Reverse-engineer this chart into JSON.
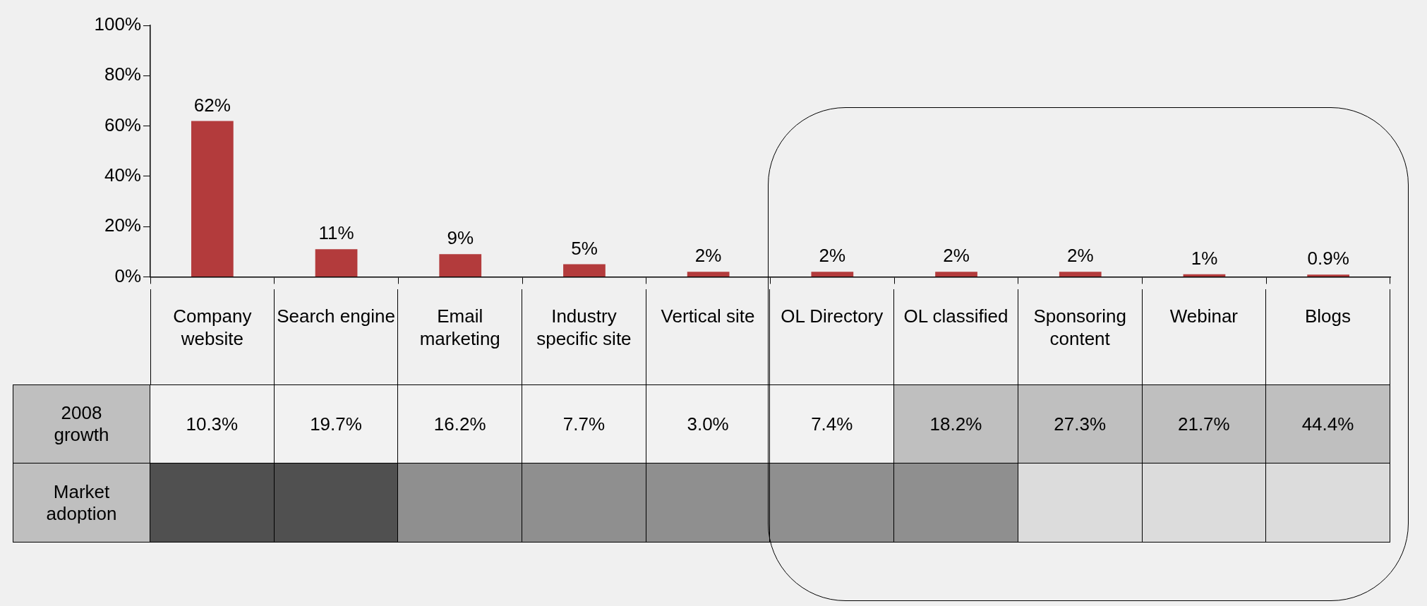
{
  "chart_data": [
    {
      "type": "bar",
      "categories": [
        "Company website",
        "Search engine",
        "Email marketing",
        "Industry specific site",
        "Vertical site",
        "OL Directory",
        "OL classified",
        "Sponsoring content",
        "Webinar",
        "Blogs"
      ],
      "values": [
        62,
        11,
        9,
        5,
        2,
        2,
        2,
        2,
        1,
        0.9
      ],
      "value_labels": [
        "62%",
        "11%",
        "9%",
        "5%",
        "2%",
        "2%",
        "2%",
        "2%",
        "1%",
        "0.9%"
      ],
      "color": "#b33b3c",
      "ylim": [
        0,
        100
      ],
      "yticks": [
        {
          "value": 0,
          "label": "0%"
        },
        {
          "value": 20,
          "label": "20%"
        },
        {
          "value": 40,
          "label": "40%"
        },
        {
          "value": 60,
          "label": "60%"
        },
        {
          "value": 80,
          "label": "80%"
        },
        {
          "value": 100,
          "label": "100%"
        }
      ],
      "legend": false,
      "grid": false
    },
    {
      "type": "heatmap",
      "categories": [
        null,
        null,
        null,
        null,
        null,
        null,
        null,
        null,
        null,
        null
      ],
      "y_categories": [
        "2008 growth",
        "Market adoption"
      ],
      "cells": [
        [
          10.3,
          19.7,
          16.2,
          7.7,
          3.0,
          7.4,
          18.2,
          27.3,
          21.7,
          44.4
        ],
        [
          null,
          null,
          null,
          null,
          null,
          null,
          null,
          null,
          null,
          null
        ]
      ],
      "cell_labels": [
        [
          "10.3%",
          "19.7%",
          "16.2%",
          "7.7%",
          "3.0%",
          "7.4%",
          "18.2%",
          "27.3%",
          "21.7%",
          "44.4%"
        ],
        [
          null,
          null,
          null,
          null,
          null,
          null,
          null,
          null,
          null,
          null
        ]
      ],
      "colors": [
        [
          "#f2f2f2",
          "#f2f2f2",
          "#f2f2f2",
          "#f2f2f2",
          "#f2f2f2",
          "#f2f2f2",
          "#bfbfbf",
          "#bfbfbf",
          "#bfbfbf",
          "#bfbfbf"
        ],
        [
          "#505050",
          "#505050",
          "#8f8f8f",
          "#8f8f8f",
          "#8f8f8f",
          "#8f8f8f",
          "#8f8f8f",
          "#dcdcdc",
          "#dcdcdc",
          "#dcdcdc"
        ]
      ]
    }
  ]
}
